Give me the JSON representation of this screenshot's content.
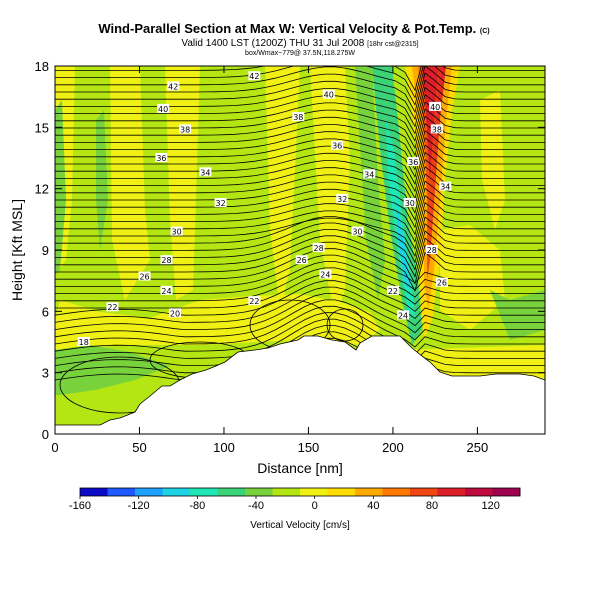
{
  "chart_data": {
    "type": "heatmap",
    "title": "Wind-Parallel Section at Max W: Vertical Velocity & Pot.Temp.",
    "title_mark": "(C)",
    "subtitle": "Valid 1400 LST (1200Z) THU 31 Jul 2008",
    "subtitle_small": "[18hr cst@2315]",
    "info_line": "box/Wmax~779@ 37.5N,118.275W",
    "xlabel": "Distance [nm]",
    "ylabel": "Height [Kft MSL]",
    "xlim": [
      0,
      290
    ],
    "ylim": [
      0,
      18
    ],
    "xticks": [
      0,
      50,
      100,
      150,
      200,
      250
    ],
    "yticks": [
      0,
      3,
      6,
      9,
      12,
      15,
      18
    ],
    "colorbar": {
      "label": "Vertical Velocity [cm/s]",
      "range": [
        -160,
        140
      ],
      "ticks": [
        -160,
        -120,
        -80,
        -40,
        0,
        40,
        80,
        120
      ],
      "colors": [
        "#0a0ac8",
        "#1e5aff",
        "#1ea0ff",
        "#1ed2e6",
        "#1ee6b4",
        "#3cd278",
        "#78d23c",
        "#b4e614",
        "#f0f014",
        "#ffdc00",
        "#ffaa00",
        "#ff7800",
        "#f04614",
        "#dc1e28",
        "#be0a3c",
        "#a00050"
      ]
    },
    "theta_contour_labels": [
      {
        "value": 42,
        "x": 70,
        "z": 17.0
      },
      {
        "value": 42,
        "x": 118,
        "z": 17.5
      },
      {
        "value": 40,
        "x": 64,
        "z": 15.9
      },
      {
        "value": 40,
        "x": 162,
        "z": 16.6
      },
      {
        "value": 40,
        "x": 225,
        "z": 16.0
      },
      {
        "value": 38,
        "x": 77,
        "z": 14.9
      },
      {
        "value": 38,
        "x": 144,
        "z": 15.5
      },
      {
        "value": 38,
        "x": 226,
        "z": 14.9
      },
      {
        "value": 36,
        "x": 63,
        "z": 13.5
      },
      {
        "value": 36,
        "x": 167,
        "z": 14.1
      },
      {
        "value": 36,
        "x": 212,
        "z": 13.3
      },
      {
        "value": 34,
        "x": 89,
        "z": 12.8
      },
      {
        "value": 34,
        "x": 186,
        "z": 12.7
      },
      {
        "value": 34,
        "x": 231,
        "z": 12.1
      },
      {
        "value": 32,
        "x": 98,
        "z": 11.3
      },
      {
        "value": 32,
        "x": 170,
        "z": 11.5
      },
      {
        "value": 30,
        "x": 72,
        "z": 9.9
      },
      {
        "value": 30,
        "x": 179,
        "z": 9.9
      },
      {
        "value": 30,
        "x": 210,
        "z": 11.3
      },
      {
        "value": 28,
        "x": 66,
        "z": 8.5
      },
      {
        "value": 28,
        "x": 156,
        "z": 9.1
      },
      {
        "value": 28,
        "x": 223,
        "z": 9.0
      },
      {
        "value": 26,
        "x": 53,
        "z": 7.7
      },
      {
        "value": 26,
        "x": 146,
        "z": 8.5
      },
      {
        "value": 26,
        "x": 229,
        "z": 7.4
      },
      {
        "value": 24,
        "x": 66,
        "z": 7.0
      },
      {
        "value": 24,
        "x": 160,
        "z": 7.8
      },
      {
        "value": 24,
        "x": 206,
        "z": 5.8
      },
      {
        "value": 22,
        "x": 34,
        "z": 6.2
      },
      {
        "value": 22,
        "x": 118,
        "z": 6.5
      },
      {
        "value": 22,
        "x": 200,
        "z": 7.0
      },
      {
        "value": 20,
        "x": 71,
        "z": 5.9
      },
      {
        "value": 18,
        "x": 17,
        "z": 4.5
      }
    ]
  }
}
